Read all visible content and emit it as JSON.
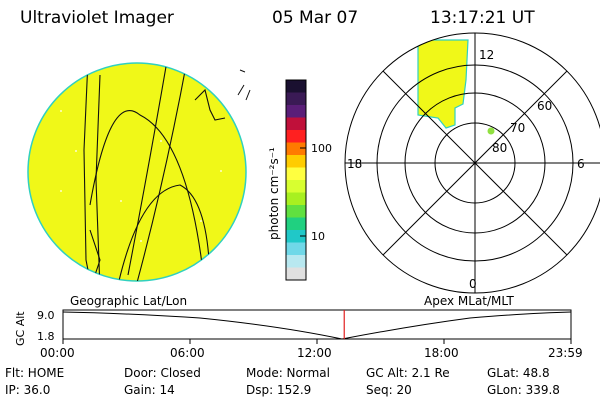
{
  "header": {
    "instrument": "Ultraviolet Imager",
    "date": "05 Mar 07",
    "time": "13:17:21 UT"
  },
  "colorbar": {
    "unit_label": "photon cm⁻²s⁻¹",
    "tick_high": "100",
    "tick_low": "10",
    "colors": [
      "#1a1030",
      "#3a1a55",
      "#5a1e78",
      "#c0103a",
      "#ff2020",
      "#ff7a00",
      "#ffcc00",
      "#ffff40",
      "#d8ff30",
      "#a8f020",
      "#60e040",
      "#20d080",
      "#20c8c8",
      "#70d8e8",
      "#b8e8f0",
      "#e0e0e0"
    ]
  },
  "geographic": {
    "label": "Geographic Lat/Lon",
    "fill": "#f0f818",
    "edge": "#30d0c0"
  },
  "polar": {
    "label": "Apex MLat/MLT",
    "mlt_labels": [
      "12",
      "18",
      "6",
      "0"
    ],
    "lat_labels": [
      "60",
      "70",
      "80"
    ]
  },
  "timeline": {
    "axis_label": "GC Alt",
    "alt_max": "9.0",
    "alt_min": "1.8",
    "ticks": [
      "00:00",
      "06:00",
      "12:00",
      "18:00",
      "23:59"
    ],
    "current_fraction": 0.5536,
    "marker_color": "#e02020"
  },
  "info": {
    "row1": [
      "Flt: HOME",
      "Door: Closed",
      "Mode: Normal",
      "GC Alt: 2.1 Re",
      "GLat:  48.8"
    ],
    "row2": [
      "IP: 36.0",
      "Gain: 14",
      "Dsp:  152.9",
      "Seq: 20",
      "GLon: 339.8"
    ]
  }
}
